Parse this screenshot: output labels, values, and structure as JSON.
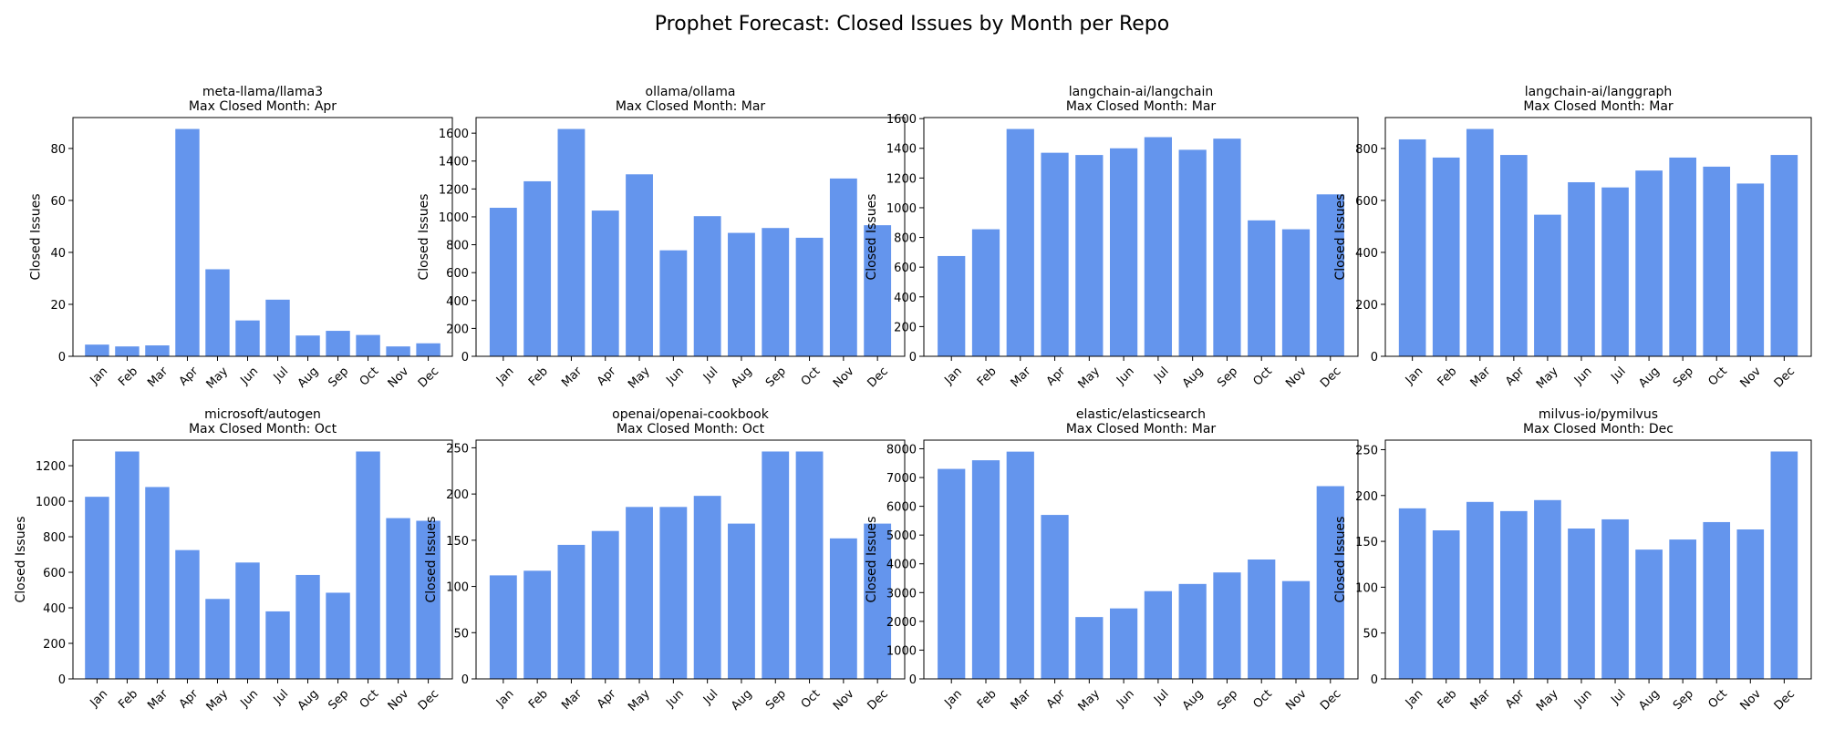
{
  "figure": {
    "title": "Prophet Forecast: Closed Issues by Month per Repo"
  },
  "colors": {
    "bar": "#6495ED"
  },
  "chart_data": [
    {
      "type": "bar",
      "title": "meta-llama/llama3",
      "subtitle": "Max Closed Month: Apr",
      "ylabel": "Closed Issues",
      "categories": [
        "Jan",
        "Feb",
        "Mar",
        "Apr",
        "May",
        "Jun",
        "Jul",
        "Aug",
        "Sep",
        "Oct",
        "Nov",
        "Dec"
      ],
      "values": [
        4.5,
        3.8,
        4.2,
        87.5,
        33.5,
        13.8,
        21.8,
        8.0,
        9.8,
        8.2,
        3.8,
        5.0
      ],
      "ylim": [
        0,
        91.9
      ],
      "yticks": [
        0,
        20,
        40,
        60,
        80
      ]
    },
    {
      "type": "bar",
      "title": "ollama/ollama",
      "subtitle": "Max Closed Month: Mar",
      "ylabel": "Closed Issues",
      "categories": [
        "Jan",
        "Feb",
        "Mar",
        "Apr",
        "May",
        "Jun",
        "Jul",
        "Aug",
        "Sep",
        "Oct",
        "Nov",
        "Dec"
      ],
      "values": [
        1065,
        1255,
        1630,
        1045,
        1305,
        760,
        1005,
        885,
        920,
        850,
        1275,
        940
      ],
      "ylim": [
        0,
        1712
      ],
      "yticks": [
        0,
        200,
        400,
        600,
        800,
        1000,
        1200,
        1400,
        1600
      ]
    },
    {
      "type": "bar",
      "title": "langchain-ai/langchain",
      "subtitle": "Max Closed Month: Mar",
      "ylabel": "Closed Issues",
      "categories": [
        "Jan",
        "Feb",
        "Mar",
        "Apr",
        "May",
        "Jun",
        "Jul",
        "Aug",
        "Sep",
        "Oct",
        "Nov",
        "Dec"
      ],
      "values": [
        675,
        855,
        1530,
        1370,
        1355,
        1400,
        1475,
        1390,
        1465,
        915,
        855,
        1090
      ],
      "ylim": [
        0,
        1607
      ],
      "yticks": [
        0,
        200,
        400,
        600,
        800,
        1000,
        1200,
        1400,
        1600
      ]
    },
    {
      "type": "bar",
      "title": "langchain-ai/langgraph",
      "subtitle": "Max Closed Month: Mar",
      "ylabel": "Closed Issues",
      "categories": [
        "Jan",
        "Feb",
        "Mar",
        "Apr",
        "May",
        "Jun",
        "Jul",
        "Aug",
        "Sep",
        "Oct",
        "Nov",
        "Dec"
      ],
      "values": [
        835,
        765,
        875,
        775,
        545,
        670,
        650,
        715,
        765,
        730,
        665,
        775
      ],
      "ylim": [
        0,
        919
      ],
      "yticks": [
        0,
        200,
        400,
        600,
        800
      ]
    },
    {
      "type": "bar",
      "title": "microsoft/autogen",
      "subtitle": "Max Closed Month: Oct",
      "ylabel": "Closed Issues",
      "categories": [
        "Jan",
        "Feb",
        "Mar",
        "Apr",
        "May",
        "Jun",
        "Jul",
        "Aug",
        "Sep",
        "Oct",
        "Nov",
        "Dec"
      ],
      "values": [
        1025,
        1280,
        1080,
        725,
        450,
        655,
        380,
        585,
        485,
        1280,
        905,
        890
      ],
      "ylim": [
        0,
        1344
      ],
      "yticks": [
        0,
        200,
        400,
        600,
        800,
        1000,
        1200
      ]
    },
    {
      "type": "bar",
      "title": "openai/openai-cookbook",
      "subtitle": "Max Closed Month: Oct",
      "ylabel": "Closed Issues",
      "categories": [
        "Jan",
        "Feb",
        "Mar",
        "Apr",
        "May",
        "Jun",
        "Jul",
        "Aug",
        "Sep",
        "Oct",
        "Nov",
        "Dec"
      ],
      "values": [
        112,
        117,
        145,
        160,
        186,
        186,
        198,
        168,
        246,
        246,
        152,
        168
      ],
      "ylim": [
        0,
        258.3
      ],
      "yticks": [
        0,
        50,
        100,
        150,
        200,
        250
      ]
    },
    {
      "type": "bar",
      "title": "elastic/elasticsearch",
      "subtitle": "Max Closed Month: Mar",
      "ylabel": "Closed Issues",
      "categories": [
        "Jan",
        "Feb",
        "Mar",
        "Apr",
        "May",
        "Jun",
        "Jul",
        "Aug",
        "Sep",
        "Oct",
        "Nov",
        "Dec"
      ],
      "values": [
        7300,
        7600,
        7900,
        5700,
        2150,
        2450,
        3050,
        3300,
        3700,
        4150,
        3400,
        6700
      ],
      "ylim": [
        0,
        8300
      ],
      "yticks": [
        0,
        1000,
        2000,
        3000,
        4000,
        5000,
        6000,
        7000,
        8000
      ]
    },
    {
      "type": "bar",
      "title": "milvus-io/pymilvus",
      "subtitle": "Max Closed Month: Dec",
      "ylabel": "Closed Issues",
      "categories": [
        "Jan",
        "Feb",
        "Mar",
        "Apr",
        "May",
        "Jun",
        "Jul",
        "Aug",
        "Sep",
        "Oct",
        "Nov",
        "Dec"
      ],
      "values": [
        186,
        162,
        193,
        183,
        195,
        164,
        174,
        141,
        152,
        171,
        163,
        248
      ],
      "ylim": [
        0,
        260.4
      ],
      "yticks": [
        0,
        50,
        100,
        150,
        200,
        250
      ]
    }
  ]
}
